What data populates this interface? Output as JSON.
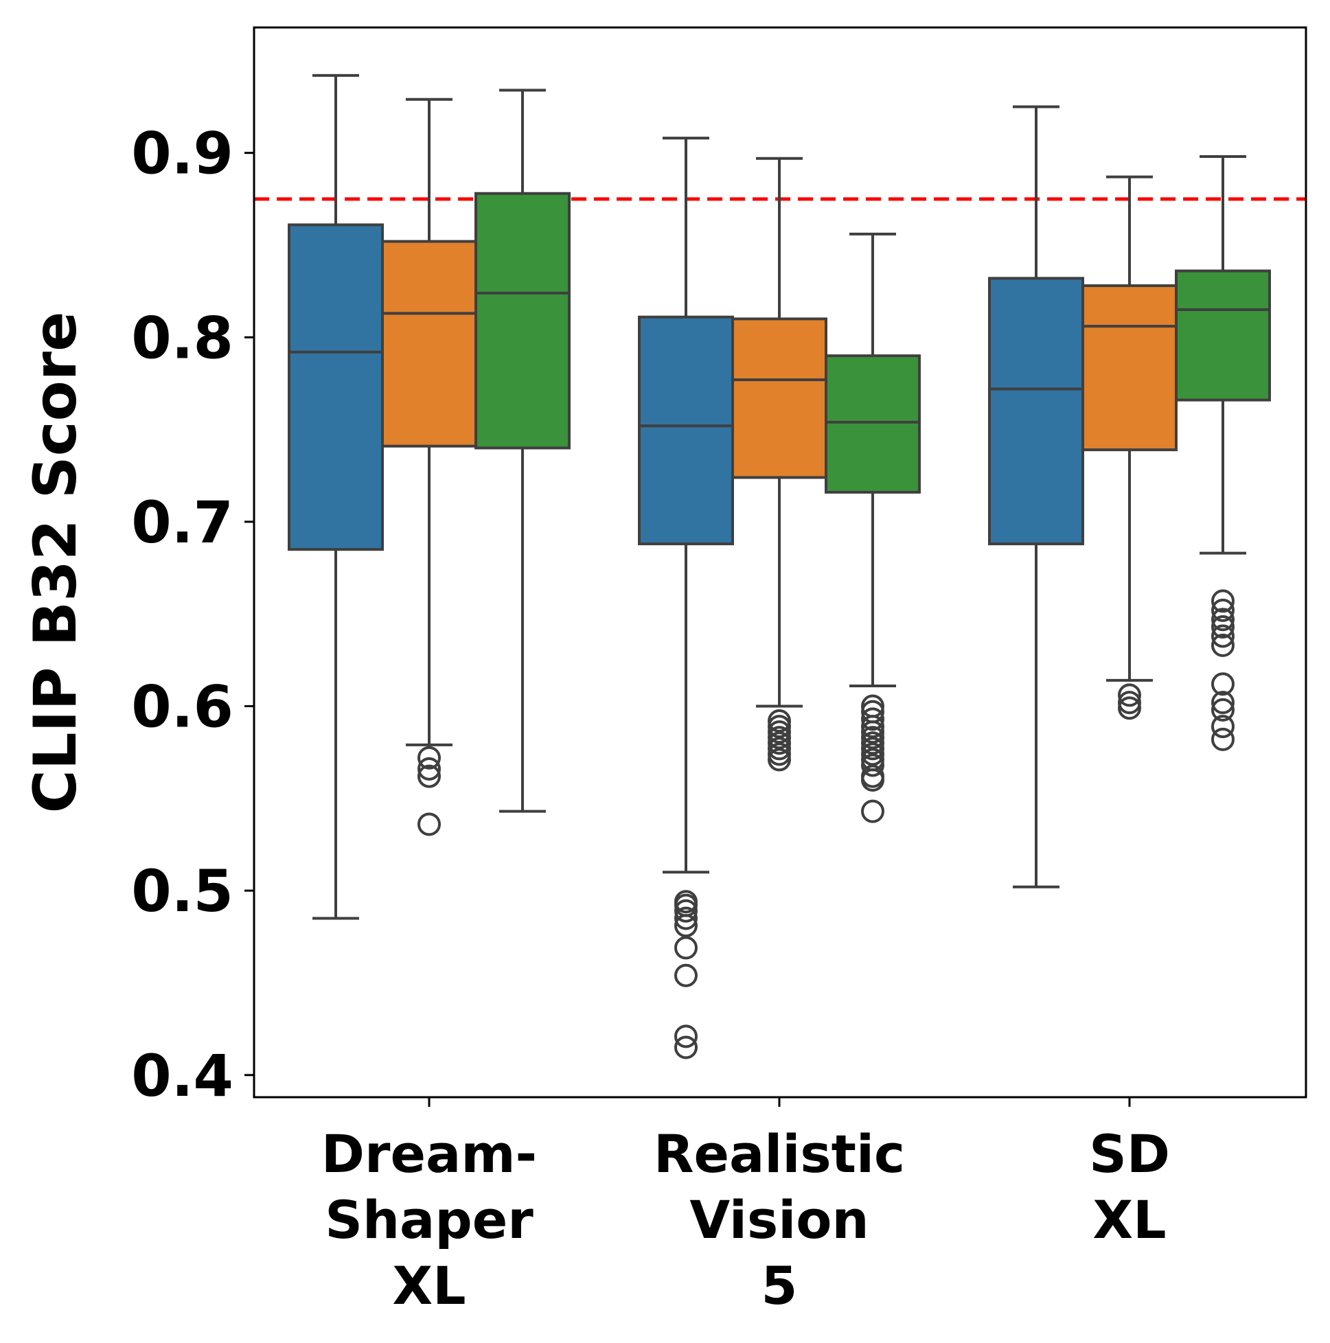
{
  "chart_data": {
    "type": "box",
    "title": "",
    "xlabel": "",
    "ylabel": "CLIP B32 Score",
    "ylim": [
      0.388,
      0.968
    ],
    "yticks": [
      {
        "value": 0.4,
        "label": "0.4"
      },
      {
        "value": 0.5,
        "label": "0.5"
      },
      {
        "value": 0.6,
        "label": "0.6"
      },
      {
        "value": 0.7,
        "label": "0.7"
      },
      {
        "value": 0.8,
        "label": "0.8"
      },
      {
        "value": 0.9,
        "label": "0.9"
      }
    ],
    "reference_line": {
      "value": 0.875,
      "color": "#ff0000",
      "style": "dashed"
    },
    "grid": false,
    "legend": "none",
    "colors": [
      "#3274a1",
      "#e1812c",
      "#3a923a"
    ],
    "edge_color": "#3f3f3f",
    "categories": [
      {
        "label_lines": [
          "Dream-",
          "Shaper",
          "XL"
        ]
      },
      {
        "label_lines": [
          "Realistic",
          "Vision",
          "5"
        ]
      },
      {
        "label_lines": [
          "SD",
          "XL"
        ]
      }
    ],
    "groups": [
      [
        {
          "whislo": 0.485,
          "q1": 0.685,
          "med": 0.792,
          "q3": 0.861,
          "whishi": 0.942,
          "fliers": []
        },
        {
          "whislo": 0.579,
          "q1": 0.741,
          "med": 0.813,
          "q3": 0.852,
          "whishi": 0.929,
          "fliers": [
            0.572,
            0.566,
            0.562,
            0.536
          ]
        },
        {
          "whislo": 0.543,
          "q1": 0.74,
          "med": 0.824,
          "q3": 0.878,
          "whishi": 0.934,
          "fliers": []
        }
      ],
      [
        {
          "whislo": 0.51,
          "q1": 0.688,
          "med": 0.752,
          "q3": 0.811,
          "whishi": 0.908,
          "fliers": [
            0.494,
            0.492,
            0.489,
            0.485,
            0.481,
            0.469,
            0.454,
            0.421,
            0.415
          ]
        },
        {
          "whislo": 0.6,
          "q1": 0.724,
          "med": 0.777,
          "q3": 0.81,
          "whishi": 0.897,
          "fliers": [
            0.592,
            0.589,
            0.586,
            0.583,
            0.58,
            0.577,
            0.574,
            0.571
          ]
        },
        {
          "whislo": 0.611,
          "q1": 0.716,
          "med": 0.754,
          "q3": 0.79,
          "whishi": 0.856,
          "fliers": [
            0.6,
            0.597,
            0.593,
            0.589,
            0.586,
            0.583,
            0.58,
            0.577,
            0.574,
            0.571,
            0.568,
            0.562,
            0.56,
            0.543
          ]
        }
      ],
      [
        {
          "whislo": 0.502,
          "q1": 0.688,
          "med": 0.772,
          "q3": 0.832,
          "whishi": 0.925,
          "fliers": []
        },
        {
          "whislo": 0.614,
          "q1": 0.739,
          "med": 0.806,
          "q3": 0.828,
          "whishi": 0.887,
          "fliers": [
            0.606,
            0.602,
            0.599
          ]
        },
        {
          "whislo": 0.683,
          "q1": 0.766,
          "med": 0.815,
          "q3": 0.836,
          "whishi": 0.898,
          "fliers": [
            0.657,
            0.652,
            0.647,
            0.643,
            0.638,
            0.633,
            0.612,
            0.602,
            0.598,
            0.589,
            0.582
          ]
        }
      ]
    ]
  }
}
